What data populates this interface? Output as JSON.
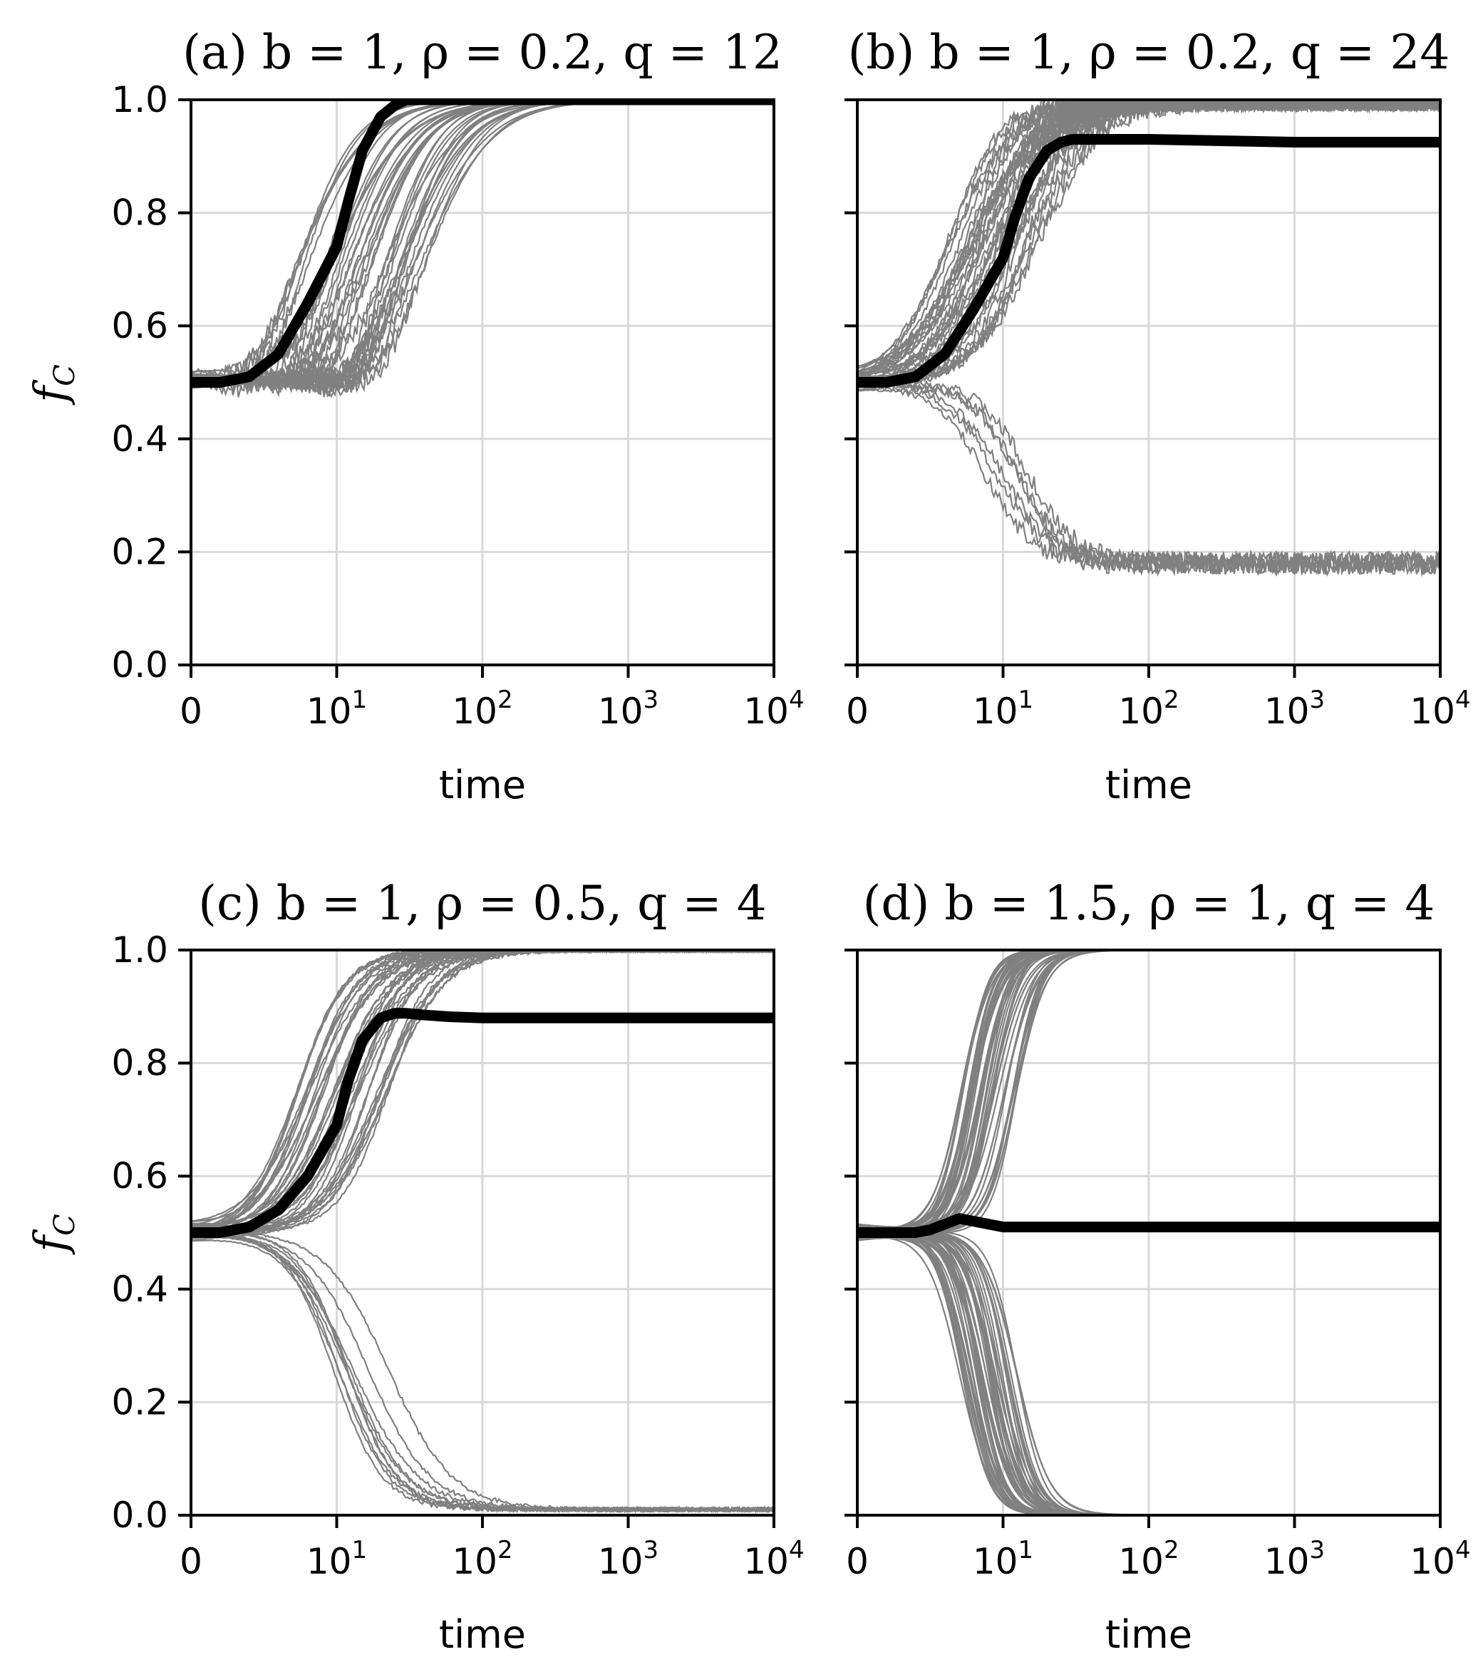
{
  "figure": {
    "ylabel_main": "f",
    "ylabel_sub": "C",
    "xlabel": "time"
  },
  "chart_data": [
    {
      "type": "line",
      "title": "(a) b = 1, ρ = 0.2, q = 12",
      "xlabel": "time",
      "ylabel": "f_C",
      "x_scale": "symlog",
      "x_ticks": [
        "0",
        "10^1",
        "10^2",
        "10^3",
        "10^4"
      ],
      "y_ticks": [
        "0.0",
        "0.2",
        "0.4",
        "0.6",
        "0.8",
        "1.0"
      ],
      "xlim": [
        0,
        10000
      ],
      "ylim": [
        0,
        1
      ],
      "grid": true,
      "mean_series": {
        "x": [
          0,
          2,
          4,
          6,
          8,
          10,
          12,
          15,
          20,
          25,
          30,
          40,
          60,
          100,
          1000,
          10000
        ],
        "y": [
          0.5,
          0.5,
          0.51,
          0.55,
          0.64,
          0.74,
          0.82,
          0.91,
          0.97,
          0.99,
          1.0,
          1.0,
          1.0,
          1.0,
          1.0,
          1.0
        ]
      },
      "trajectories": {
        "count": 40,
        "up": {
          "shift": [
            0.75,
            1.7
          ],
          "width": [
            1.0,
            1.5
          ]
        },
        "down": null,
        "initial_dip": 0.05,
        "noise": 0.0,
        "final_up": 1.0
      }
    },
    {
      "type": "line",
      "title": "(b) b = 1, ρ = 0.2, q = 24",
      "xlabel": "time",
      "ylabel": "f_C",
      "x_scale": "symlog",
      "x_ticks": [
        "0",
        "10^1",
        "10^2",
        "10^3",
        "10^4"
      ],
      "y_ticks": [
        "0.0",
        "0.2",
        "0.4",
        "0.6",
        "0.8",
        "1.0"
      ],
      "xlim": [
        0,
        10000
      ],
      "ylim": [
        0,
        1
      ],
      "grid": true,
      "mean_series": {
        "x": [
          0,
          2,
          4,
          6,
          8,
          10,
          12,
          15,
          20,
          25,
          30,
          40,
          60,
          100,
          1000,
          10000
        ],
        "y": [
          0.5,
          0.5,
          0.51,
          0.55,
          0.63,
          0.72,
          0.79,
          0.86,
          0.91,
          0.925,
          0.93,
          0.93,
          0.93,
          0.93,
          0.925,
          0.925
        ]
      },
      "trajectories": {
        "count": 40,
        "up": {
          "shift": [
            0.6,
            1.25
          ],
          "width": [
            1.0,
            1.4
          ],
          "share": 0.85
        },
        "down": {
          "shift": [
            0.85,
            1.2
          ],
          "width": [
            1.3,
            1.6
          ],
          "final": 0.18,
          "share": 0.15
        },
        "initial_dip": 0.0,
        "noise": 0.02,
        "final_up": 1.0
      }
    },
    {
      "type": "line",
      "title": "(c) b = 1, ρ = 0.5, q = 4",
      "xlabel": "time",
      "ylabel": "f_C",
      "x_scale": "symlog",
      "x_ticks": [
        "0",
        "10^1",
        "10^2",
        "10^3",
        "10^4"
      ],
      "y_ticks": [
        "0.0",
        "0.2",
        "0.4",
        "0.6",
        "0.8",
        "1.0"
      ],
      "xlim": [
        0,
        10000
      ],
      "ylim": [
        0,
        1
      ],
      "grid": true,
      "mean_series": {
        "x": [
          0,
          2,
          4,
          6,
          8,
          10,
          12,
          15,
          20,
          25,
          30,
          40,
          60,
          100,
          1000,
          10000
        ],
        "y": [
          0.5,
          0.5,
          0.51,
          0.54,
          0.6,
          0.69,
          0.77,
          0.84,
          0.88,
          0.888,
          0.888,
          0.885,
          0.882,
          0.88,
          0.88,
          0.88
        ]
      },
      "trajectories": {
        "count": 46,
        "up": {
          "shift": [
            0.7,
            1.4
          ],
          "width": [
            1.1,
            1.6
          ],
          "share": 0.78
        },
        "down": {
          "shift": [
            0.95,
            1.4
          ],
          "width": [
            1.1,
            1.5
          ],
          "final": 0.01,
          "share": 0.22
        },
        "initial_dip": 0.0,
        "noise": 0.004,
        "final_up": 1.0
      }
    },
    {
      "type": "line",
      "title": "(d) b = 1.5, ρ = 1, q = 4",
      "xlabel": "time",
      "ylabel": "f_C",
      "x_scale": "symlog",
      "x_ticks": [
        "0",
        "10^1",
        "10^2",
        "10^3",
        "10^4"
      ],
      "y_ticks": [
        "0.0",
        "0.2",
        "0.4",
        "0.6",
        "0.8",
        "1.0"
      ],
      "xlim": [
        0,
        10000
      ],
      "ylim": [
        0,
        1
      ],
      "grid": true,
      "mean_series": {
        "x": [
          0,
          2,
          4,
          5,
          6,
          7,
          8,
          9,
          10,
          12,
          15,
          20,
          100,
          1000,
          10000
        ],
        "y": [
          0.5,
          0.5,
          0.5,
          0.505,
          0.515,
          0.525,
          0.52,
          0.515,
          0.51,
          0.51,
          0.51,
          0.51,
          0.51,
          0.51,
          0.51
        ]
      },
      "trajectories": {
        "count": 90,
        "up": {
          "shift": [
            0.7,
            1.1
          ],
          "width": [
            2.2,
            3.0
          ],
          "share": 0.5
        },
        "down": {
          "shift": [
            0.7,
            1.1
          ],
          "width": [
            2.2,
            3.0
          ],
          "final": 0.0,
          "share": 0.5
        },
        "initial_dip": 0.0,
        "noise": 0.0,
        "final_up": 1.0
      }
    }
  ]
}
